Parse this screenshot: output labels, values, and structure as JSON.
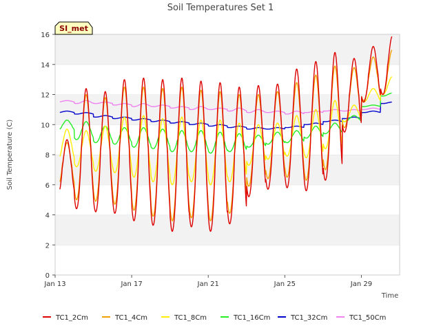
{
  "chart_data": {
    "type": "line",
    "title": "Soil Temperatures Set 1",
    "xlabel": "Time",
    "ylabel": "Soil Temperature (C)",
    "badge": "SI_met",
    "xlim": [
      "Jan 13",
      "Jan 31"
    ],
    "ylim": [
      0,
      16
    ],
    "x_ticks": [
      "Jan 13",
      "Jan 17",
      "Jan 21",
      "Jan 25",
      "Jan 29"
    ],
    "y_ticks": [
      0,
      2,
      4,
      6,
      8,
      10,
      12,
      14,
      16
    ],
    "grid": "horizontal bands",
    "legend": "bottom",
    "x": [
      "Jan 13",
      "Jan 14",
      "Jan 15",
      "Jan 16",
      "Jan 17",
      "Jan 18",
      "Jan 19",
      "Jan 20",
      "Jan 21",
      "Jan 22",
      "Jan 23",
      "Jan 24",
      "Jan 25",
      "Jan 26",
      "Jan 27",
      "Jan 28",
      "Jan 29",
      "Jan 30"
    ],
    "series": [
      {
        "name": "TC1_2Cm",
        "color": "#dd0000",
        "daily_max": [
          9.0,
          12.4,
          12.2,
          13.0,
          13.1,
          13.0,
          13.1,
          12.9,
          12.8,
          12.5,
          12.6,
          12.7,
          13.7,
          14.2,
          14.8,
          14.4,
          15.2,
          15.9
        ],
        "daily_min": [
          5.2,
          4.4,
          4.2,
          4.1,
          3.6,
          3.3,
          2.9,
          3.2,
          2.9,
          3.4,
          5.2,
          5.7,
          5.8,
          5.6,
          6.3,
          9.5,
          11.5,
          12.0
        ]
      },
      {
        "name": "TC1_4Cm",
        "color": "#f0a000",
        "daily_max": [
          8.8,
          12.0,
          11.8,
          12.5,
          12.5,
          12.4,
          12.5,
          12.3,
          12.2,
          12.0,
          12.0,
          12.2,
          12.8,
          13.3,
          13.9,
          13.8,
          14.5,
          15.0
        ],
        "daily_min": [
          5.8,
          5.0,
          4.9,
          4.7,
          4.3,
          3.9,
          3.6,
          3.8,
          3.6,
          4.1,
          5.9,
          6.4,
          6.5,
          6.3,
          7.0,
          9.8,
          11.6,
          12.0
        ]
      },
      {
        "name": "TC1_8Cm",
        "color": "#ffee00",
        "daily_max": [
          9.7,
          9.6,
          9.9,
          10.5,
          10.6,
          10.4,
          10.5,
          10.3,
          10.3,
          10.1,
          10.0,
          10.1,
          10.6,
          11.0,
          11.6,
          11.3,
          12.4,
          13.2
        ],
        "daily_min": [
          7.6,
          7.2,
          6.9,
          6.8,
          6.5,
          6.2,
          6.0,
          6.2,
          6.0,
          6.2,
          7.3,
          7.7,
          7.9,
          7.8,
          8.4,
          10.2,
          11.5,
          12.0
        ]
      },
      {
        "name": "TC1_16Cm",
        "color": "#22ee22",
        "daily_max": [
          10.3,
          10.2,
          9.9,
          9.8,
          9.8,
          9.7,
          9.6,
          9.6,
          9.5,
          9.4,
          9.3,
          9.5,
          9.6,
          9.9,
          10.1,
          10.6,
          11.3,
          12.1
        ],
        "daily_min": [
          9.6,
          9.0,
          8.8,
          8.7,
          8.5,
          8.4,
          8.2,
          8.2,
          8.1,
          8.2,
          8.5,
          8.7,
          8.8,
          9.1,
          9.4,
          10.2,
          11.2,
          11.9
        ]
      },
      {
        "name": "TC1_32Cm",
        "color": "#0000cc",
        "daily_max": [
          10.9,
          10.8,
          10.6,
          10.5,
          10.4,
          10.3,
          10.2,
          10.1,
          10.0,
          9.9,
          9.8,
          9.8,
          9.9,
          10.1,
          10.3,
          10.5,
          10.9,
          11.5
        ],
        "daily_min": [
          10.8,
          10.7,
          10.5,
          10.4,
          10.3,
          10.2,
          10.1,
          10.0,
          9.9,
          9.8,
          9.7,
          9.7,
          9.8,
          10.0,
          10.2,
          10.4,
          10.8,
          11.4
        ]
      },
      {
        "name": "TC1_50Cm",
        "color": "#ee82ee",
        "daily_max": [
          11.6,
          11.6,
          11.5,
          11.4,
          11.4,
          11.3,
          11.2,
          11.2,
          11.1,
          11.1,
          11.0,
          10.9,
          10.9,
          10.9,
          11.0,
          11.0,
          11.1,
          11.5
        ],
        "daily_min": [
          11.5,
          11.4,
          11.4,
          11.3,
          11.2,
          11.2,
          11.1,
          11.0,
          11.0,
          10.9,
          10.8,
          10.8,
          10.7,
          10.8,
          10.9,
          10.9,
          11.0,
          11.4
        ]
      }
    ]
  }
}
